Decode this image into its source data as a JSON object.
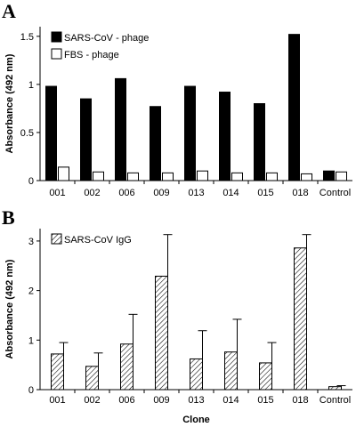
{
  "chart_data": [
    {
      "panel": "A",
      "type": "bar",
      "ylabel": "Absorbance (492 nm)",
      "xlabel": "",
      "ylim": [
        0,
        1.6
      ],
      "yticks": [
        "0",
        "0.5",
        "1",
        "1.5"
      ],
      "yticks_values": [
        0,
        0.5,
        1,
        1.5
      ],
      "categories": [
        "001",
        "002",
        "006",
        "009",
        "013",
        "014",
        "015",
        "018",
        "Control"
      ],
      "legend_position": "top-left",
      "grid": false,
      "series": [
        {
          "name": "SARS-CoV - phage",
          "values": [
            0.98,
            0.85,
            1.06,
            0.77,
            0.98,
            0.92,
            0.8,
            1.52,
            0.1
          ],
          "color": "#000000",
          "pattern": "solid"
        },
        {
          "name": "FBS - phage",
          "values": [
            0.14,
            0.09,
            0.08,
            0.08,
            0.1,
            0.08,
            0.08,
            0.07,
            0.09
          ],
          "color": "#ffffff",
          "pattern": "open"
        }
      ]
    },
    {
      "panel": "B",
      "type": "bar",
      "ylabel": "Absorbance (492 nm)",
      "xlabel": "Clone",
      "ylim": [
        0,
        3.25
      ],
      "yticks": [
        "0",
        "1",
        "2",
        "3"
      ],
      "yticks_values": [
        0,
        1,
        2,
        3
      ],
      "categories": [
        "001",
        "002",
        "006",
        "009",
        "013",
        "014",
        "015",
        "018",
        "Control"
      ],
      "legend_position": "top-left",
      "grid": false,
      "series": [
        {
          "name": "SARS-CoV IgG",
          "values": [
            0.72,
            0.47,
            0.92,
            2.29,
            0.62,
            0.76,
            0.54,
            2.86,
            0.06
          ],
          "error": [
            0.23,
            0.27,
            0.6,
            0.84,
            0.57,
            0.66,
            0.41,
            0.27,
            0.02
          ],
          "color": "#ffffff",
          "pattern": "hatched"
        }
      ]
    }
  ]
}
